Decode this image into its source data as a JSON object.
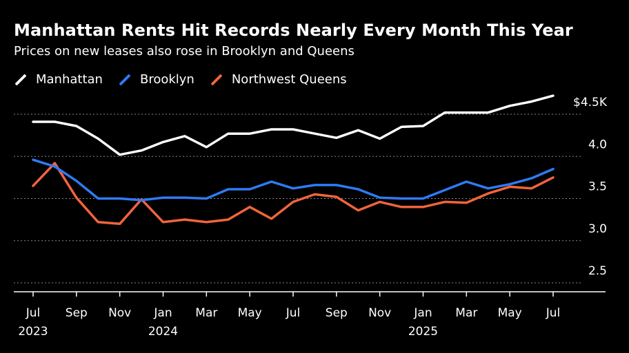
{
  "title": "Manhattan Rents Hit Records Nearly Every Month This Year",
  "subtitle": "Prices on new leases also rose in Brooklyn and Queens",
  "colors": {
    "Manhattan": "#ffffff",
    "Brooklyn": "#2f7bf5",
    "Northwest Queens": "#f2643c"
  },
  "chart_data": {
    "type": "line",
    "title": "Manhattan Rents Hit Records Nearly Every Month This Year",
    "subtitle": "Prices on new leases also rose in Brooklyn and Queens",
    "x": [
      "2023-07",
      "2023-08",
      "2023-09",
      "2023-10",
      "2023-11",
      "2023-12",
      "2024-01",
      "2024-02",
      "2024-03",
      "2024-04",
      "2024-05",
      "2024-06",
      "2024-07",
      "2024-08",
      "2024-09",
      "2024-10",
      "2024-11",
      "2024-12",
      "2025-01",
      "2025-02",
      "2025-03",
      "2025-04",
      "2025-05",
      "2025-06",
      "2025-07"
    ],
    "x_tick_labels": [
      {
        "x": "2023-07",
        "month": "Jul",
        "year": "2023"
      },
      {
        "x": "2023-09",
        "month": "Sep",
        "year": ""
      },
      {
        "x": "2023-11",
        "month": "Nov",
        "year": ""
      },
      {
        "x": "2024-01",
        "month": "Jan",
        "year": "2024"
      },
      {
        "x": "2024-03",
        "month": "Mar",
        "year": ""
      },
      {
        "x": "2024-05",
        "month": "May",
        "year": ""
      },
      {
        "x": "2024-07",
        "month": "Jul",
        "year": ""
      },
      {
        "x": "2024-09",
        "month": "Sep",
        "year": ""
      },
      {
        "x": "2024-11",
        "month": "Nov",
        "year": ""
      },
      {
        "x": "2025-01",
        "month": "Jan",
        "year": "2025"
      },
      {
        "x": "2025-03",
        "month": "Mar",
        "year": ""
      },
      {
        "x": "2025-05",
        "month": "May",
        "year": ""
      },
      {
        "x": "2025-07",
        "month": "Jul",
        "year": ""
      }
    ],
    "y_ticks": [
      {
        "value": 2.5,
        "label": "2.5"
      },
      {
        "value": 3.0,
        "label": "3.0"
      },
      {
        "value": 3.5,
        "label": "3.5"
      },
      {
        "value": 4.0,
        "label": "4.0"
      },
      {
        "value": 4.5,
        "label": "$4.5K"
      }
    ],
    "ylim": [
      2.5,
      4.5
    ],
    "grid": "horizontal dotted",
    "legend_position": "top-left",
    "series": [
      {
        "name": "Manhattan",
        "color": "#ffffff",
        "values": [
          4.41,
          4.41,
          4.36,
          4.21,
          4.02,
          4.07,
          4.17,
          4.24,
          4.11,
          4.27,
          4.27,
          4.32,
          4.32,
          4.27,
          4.22,
          4.31,
          4.21,
          4.35,
          4.36,
          4.52,
          4.52,
          4.52,
          4.6,
          4.65,
          4.72
        ]
      },
      {
        "name": "Brooklyn",
        "color": "#2f7bf5",
        "values": [
          3.96,
          3.88,
          3.71,
          3.5,
          3.5,
          3.48,
          3.51,
          3.51,
          3.5,
          3.61,
          3.61,
          3.7,
          3.62,
          3.66,
          3.66,
          3.61,
          3.51,
          3.5,
          3.5,
          3.6,
          3.7,
          3.62,
          3.67,
          3.74,
          3.85
        ]
      },
      {
        "name": "Northwest Queens",
        "color": "#f2643c",
        "values": [
          3.65,
          3.92,
          3.51,
          3.22,
          3.2,
          3.49,
          3.22,
          3.25,
          3.22,
          3.25,
          3.4,
          3.26,
          3.46,
          3.55,
          3.52,
          3.36,
          3.46,
          3.4,
          3.4,
          3.46,
          3.45,
          3.56,
          3.64,
          3.62,
          3.75
        ]
      }
    ]
  }
}
